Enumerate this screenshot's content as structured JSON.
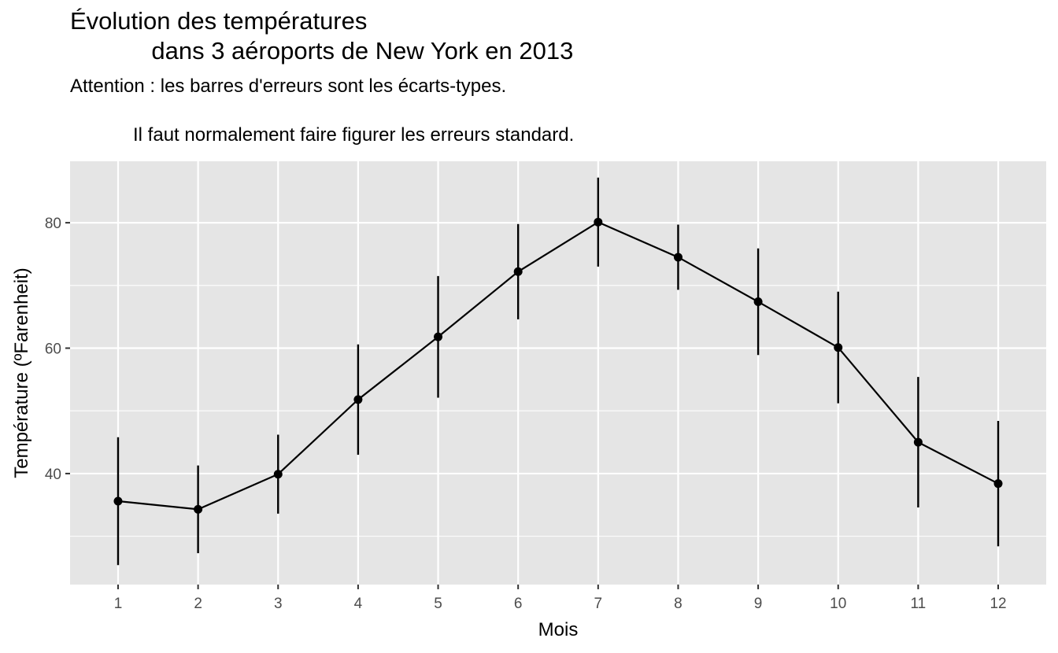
{
  "chart_data": {
    "type": "line",
    "title": "Évolution des températures\n            dans 3 aéroports de New York en 2013",
    "subtitle": "Attention : les barres d'erreurs sont les écarts-types.\n\n            Il faut normalement faire figurer les erreurs standard.",
    "xlabel": "Mois",
    "ylabel": "Température (ºFarenheit)",
    "x": [
      1,
      2,
      3,
      4,
      5,
      6,
      7,
      8,
      9,
      10,
      11,
      12
    ],
    "series": [
      {
        "values": [
          35.6,
          34.3,
          39.9,
          51.8,
          61.8,
          72.2,
          80.1,
          74.5,
          67.4,
          60.1,
          45.0,
          38.4
        ],
        "sd": [
          10.2,
          7.0,
          6.3,
          8.8,
          9.7,
          7.6,
          7.1,
          5.2,
          8.5,
          8.9,
          10.4,
          10.0
        ]
      }
    ],
    "xticks": [
      1,
      2,
      3,
      4,
      5,
      6,
      7,
      8,
      9,
      10,
      11,
      12
    ],
    "yticks": [
      40,
      60,
      80
    ],
    "xlim": [
      0.4,
      12.6
    ],
    "ylim": [
      22.3,
      89.8
    ],
    "grid": true,
    "legend": "none",
    "colors": {
      "panel": "#e5e5e5",
      "grid": "#ffffff",
      "line": "#000000",
      "tick_text": "#4d4d4d",
      "tick_mark": "#333333"
    }
  }
}
